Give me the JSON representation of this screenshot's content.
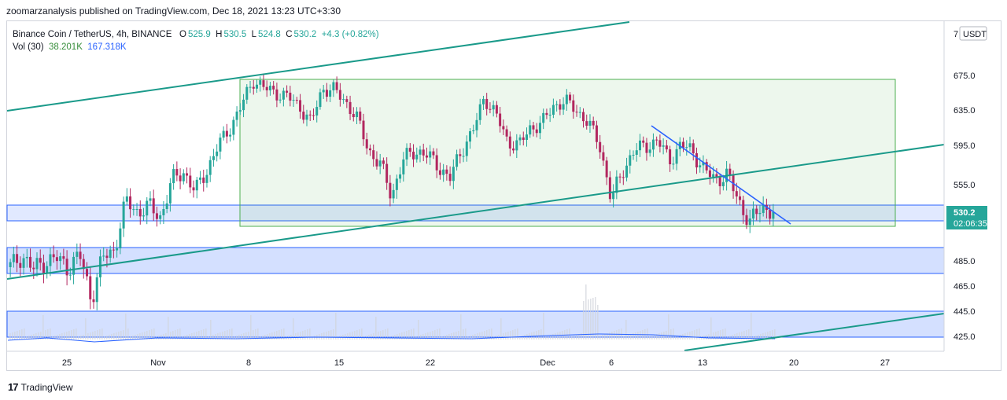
{
  "publisher_line": "zoomarzanalysis published on TradingView.com, Dec 18, 2021 13:23 UTC+3:30",
  "legend": {
    "symbol": "Binance Coin / TetherUS, 4h, BINANCE",
    "open_label": "O",
    "open": "525.9",
    "high_label": "H",
    "high": "530.5",
    "low_label": "L",
    "low": "524.8",
    "close_label": "C",
    "close": "530.2",
    "change": "+4.3 (+0.82%)",
    "vol_label": "Vol (30)",
    "vol_1": "38.201K",
    "vol_2": "167.318K"
  },
  "footer": {
    "logo_mark": "17",
    "brand": "TradingView"
  },
  "chart_data": {
    "type": "candlestick",
    "currency": "USDT",
    "y_axis_top_label": "7",
    "price_ticks": [
      "675.0",
      "635.0",
      "595.0",
      "555.0",
      "485.0",
      "465.0",
      "445.0",
      "425.0"
    ],
    "x_ticks": [
      "25",
      "Nov",
      "8",
      "15",
      "22",
      "Dec",
      "6",
      "13",
      "20",
      "27"
    ],
    "last_price": "530.2",
    "countdown": "02:06:35",
    "price_range": [
      413,
      703
    ],
    "series_close_path": [
      480,
      490,
      478,
      485,
      487,
      480,
      490,
      455,
      488,
      495,
      540,
      530,
      535,
      525,
      560,
      568,
      548,
      570,
      595,
      615,
      640,
      670,
      660,
      655,
      650,
      640,
      620,
      660,
      658,
      645,
      625,
      590,
      575,
      545,
      580,
      590,
      585,
      575,
      560,
      590,
      610,
      650,
      630,
      600,
      595,
      615,
      620,
      640,
      645,
      635,
      620,
      595,
      540,
      570,
      590,
      595,
      600,
      580,
      595,
      590,
      570,
      560,
      565,
      540,
      520,
      535,
      530
    ],
    "colors": {
      "up": "#26a69a",
      "down": "#b2275f",
      "channel": "#1a9a8a",
      "range_box": "#4caf50",
      "zone": "#2962ff",
      "trendline": "#2962ff",
      "price_label": "#26a69a"
    },
    "annotations": [
      "rising channel lines",
      "range rectangle",
      "support zones",
      "descending trendline"
    ]
  }
}
